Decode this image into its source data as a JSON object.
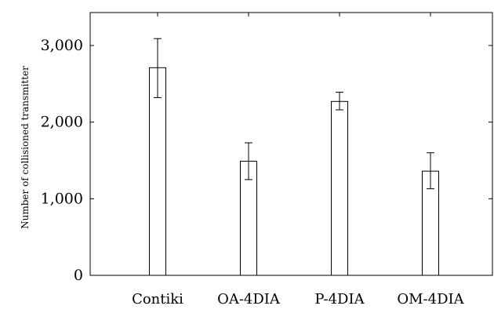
{
  "chart_data": {
    "type": "bar",
    "categories": [
      "Contiki",
      "OA-4DIA",
      "P-4DIA",
      "OM-4DIA"
    ],
    "values": [
      2710,
      1490,
      2270,
      1360
    ],
    "error_low": [
      2320,
      1250,
      2160,
      1130
    ],
    "error_high": [
      3090,
      1730,
      2390,
      1600
    ],
    "title": "",
    "xlabel": "",
    "ylabel": "Number of collisioned transmitter",
    "ylim": [
      0,
      3430
    ],
    "yticks": [
      0,
      1000,
      2000,
      3000
    ],
    "ytick_labels": [
      "0",
      "1,000",
      "2,000",
      "3,000"
    ],
    "grid": false,
    "bar_fill": "#ffffff",
    "bar_stroke": "#000000"
  }
}
